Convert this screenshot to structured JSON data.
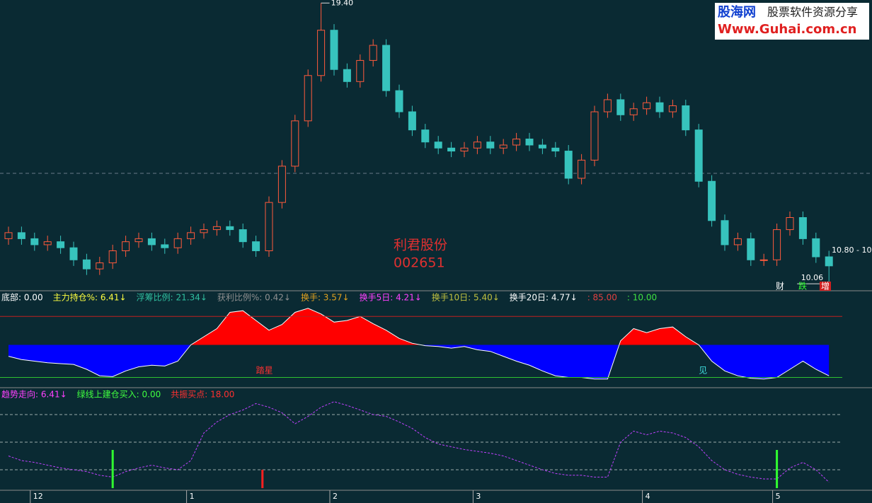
{
  "watermark": {
    "brand": "股海网",
    "slogan": "股票软件资源分享",
    "url": "Www.Guhai.com.cn"
  },
  "stock": {
    "name": "利君股份",
    "code": "002651"
  },
  "chart_data": [
    {
      "type": "candlestick",
      "open": [
        11.6,
        11.8,
        11.6,
        11.4,
        11.5,
        11.3,
        10.9,
        10.6,
        10.8,
        11.2,
        11.5,
        11.6,
        11.4,
        11.3,
        11.6,
        11.8,
        11.9,
        12.0,
        11.9,
        11.5,
        11.2,
        12.8,
        14.0,
        15.5,
        17.0,
        18.5,
        17.2,
        16.8,
        17.5,
        18.0,
        16.5,
        15.8,
        15.2,
        14.8,
        14.6,
        14.5,
        14.6,
        14.8,
        14.6,
        14.7,
        14.9,
        14.7,
        14.6,
        14.5,
        13.6,
        14.2,
        15.8,
        16.2,
        15.7,
        15.9,
        16.1,
        15.8,
        16.0,
        15.2,
        13.5,
        12.2,
        11.4,
        11.6,
        10.9,
        10.9,
        11.9,
        12.3,
        11.6,
        11.0
      ],
      "high": [
        12.0,
        12.0,
        11.8,
        11.7,
        11.7,
        11.5,
        11.1,
        11.0,
        11.4,
        11.7,
        11.8,
        11.8,
        11.6,
        11.8,
        12.0,
        12.1,
        12.2,
        12.2,
        12.1,
        11.7,
        13.0,
        14.2,
        15.7,
        17.2,
        19.4,
        18.7,
        17.4,
        17.7,
        18.2,
        18.2,
        16.7,
        16.0,
        15.4,
        15.0,
        14.8,
        14.8,
        15.0,
        15.0,
        14.9,
        15.1,
        15.1,
        14.9,
        14.8,
        14.7,
        14.4,
        16.0,
        16.4,
        16.4,
        16.1,
        16.3,
        16.3,
        16.2,
        16.2,
        15.4,
        13.7,
        12.4,
        11.8,
        11.8,
        11.1,
        12.1,
        12.5,
        12.5,
        11.8,
        11.2
      ],
      "low": [
        11.4,
        11.4,
        11.2,
        11.2,
        11.1,
        10.7,
        10.4,
        10.4,
        10.6,
        11.0,
        11.3,
        11.2,
        11.1,
        11.1,
        11.4,
        11.6,
        11.7,
        11.7,
        11.3,
        11.0,
        11.0,
        12.6,
        13.8,
        15.3,
        16.8,
        17.0,
        16.6,
        16.6,
        17.3,
        16.3,
        15.6,
        15.0,
        14.6,
        14.4,
        14.3,
        14.3,
        14.4,
        14.4,
        14.4,
        14.5,
        14.5,
        14.4,
        14.3,
        13.4,
        13.4,
        14.0,
        15.6,
        15.5,
        15.5,
        15.7,
        15.6,
        15.6,
        15.0,
        13.3,
        12.0,
        11.2,
        11.2,
        10.7,
        10.7,
        10.7,
        11.7,
        11.4,
        10.8,
        10.06
      ],
      "close": [
        11.8,
        11.6,
        11.4,
        11.5,
        11.3,
        10.9,
        10.6,
        10.8,
        11.2,
        11.5,
        11.6,
        11.4,
        11.3,
        11.6,
        11.8,
        11.9,
        12.0,
        11.9,
        11.5,
        11.2,
        12.8,
        14.0,
        15.5,
        17.0,
        18.5,
        17.2,
        16.8,
        17.5,
        18.0,
        16.5,
        15.8,
        15.2,
        14.8,
        14.6,
        14.5,
        14.6,
        14.8,
        14.6,
        14.7,
        14.9,
        14.7,
        14.6,
        14.5,
        13.6,
        14.2,
        15.8,
        16.2,
        15.7,
        15.9,
        16.1,
        15.8,
        16.0,
        15.2,
        13.5,
        12.2,
        11.4,
        11.6,
        10.9,
        10.9,
        11.9,
        12.3,
        11.6,
        11.0,
        10.7
      ],
      "ylim": [
        9.9,
        19.5
      ],
      "up_color": "#ff5a3c",
      "down_color": "#37c3bd",
      "high_label": "19.40",
      "low_label": "10.06",
      "last_label": "10.80 - 10",
      "markers": [
        {
          "text": "财",
          "color": "#ffffff"
        },
        {
          "text": "跌",
          "color": "#33ff33"
        },
        {
          "text": "增",
          "color": "#ffffff"
        }
      ],
      "x_labels": [
        {
          "index": 2,
          "label": "12"
        },
        {
          "index": 14,
          "label": "1"
        },
        {
          "index": 25,
          "label": "2"
        },
        {
          "index": 36,
          "label": "3"
        },
        {
          "index": 49,
          "label": "4"
        },
        {
          "index": 59,
          "label": "5"
        }
      ]
    },
    {
      "type": "area",
      "legend": [
        {
          "text": "底部: 0.00",
          "color": "#ffffff"
        },
        {
          "text": "主力持仓%: 6.41↓",
          "color": "#ffff40"
        },
        {
          "text": "浮筹比例: 21.34↓",
          "color": "#30c0a0"
        },
        {
          "text": "获利比例%: 0.42↓",
          "color": "#909090"
        },
        {
          "text": "换手: 3.57↓",
          "color": "#e0a020"
        },
        {
          "text": "换手5日: 4.21↓",
          "color": "#ff40ff"
        },
        {
          "text": "换手10日: 5.40↓",
          "color": "#c0c040"
        },
        {
          "text": "换手20日: 4.77↓",
          "color": "#ffffff"
        },
        {
          "text": ": 85.00",
          "color": "#e04040"
        },
        {
          "text": ": 10.00",
          "color": "#40e040"
        }
      ],
      "values": [
        36,
        32,
        30,
        28,
        27,
        26,
        20,
        12,
        11,
        18,
        23,
        25,
        24,
        30,
        50,
        60,
        70,
        90,
        92,
        80,
        68,
        75,
        90,
        95,
        88,
        78,
        80,
        85,
        76,
        68,
        58,
        52,
        49,
        48,
        46,
        48,
        44,
        42,
        36,
        30,
        25,
        18,
        12,
        10,
        10,
        8,
        8,
        55,
        70,
        65,
        70,
        72,
        60,
        50,
        30,
        18,
        12,
        9,
        8,
        10,
        20,
        30,
        20,
        12
      ],
      "threshold": 50,
      "above_color": "#ff0000",
      "below_color": "#0000ff",
      "ylim": [
        0,
        100
      ],
      "ref_lines": [
        {
          "value": 85,
          "color": "#c02020"
        },
        {
          "value": 10,
          "color": "#30c030"
        }
      ],
      "annotations": [
        {
          "text": "踏星",
          "index": 19,
          "color": "#ff3030"
        },
        {
          "text": "见",
          "index": 53,
          "color": "#40e0e0"
        }
      ]
    },
    {
      "type": "line",
      "legend": [
        {
          "text": "趋势走向: 6.41↓",
          "color": "#ff40ff"
        },
        {
          "text": "绿线上建仓买入: 0.00",
          "color": "#40ff40"
        },
        {
          "text": "共振买点: 18.00",
          "color": "#ff3030"
        }
      ],
      "values": [
        35,
        30,
        28,
        25,
        22,
        20,
        18,
        14,
        12,
        18,
        22,
        25,
        22,
        20,
        30,
        60,
        72,
        80,
        85,
        92,
        88,
        82,
        70,
        78,
        88,
        94,
        90,
        85,
        80,
        78,
        72,
        65,
        55,
        48,
        45,
        42,
        40,
        38,
        35,
        30,
        25,
        20,
        16,
        14,
        14,
        12,
        12,
        50,
        62,
        58,
        62,
        60,
        55,
        45,
        30,
        20,
        15,
        12,
        10,
        10,
        22,
        28,
        20,
        6.41
      ],
      "color": "#c040ff",
      "ylim": [
        0,
        100
      ],
      "ref_lines": [
        20,
        50,
        80
      ]
    }
  ]
}
